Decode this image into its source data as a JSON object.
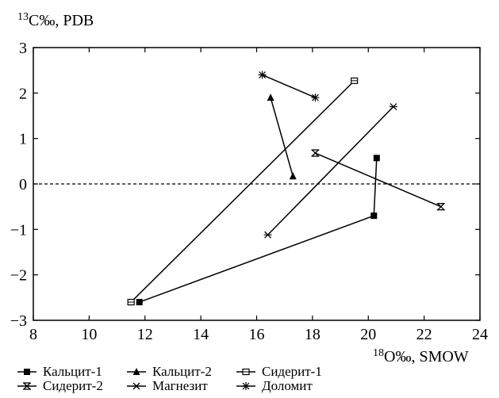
{
  "chart_data": {
    "type": "scatter",
    "x_label_sup": "18",
    "x_label_text": "O‰, SMOW",
    "y_label_sup": "13",
    "y_label_text": "C‰, PDB",
    "xlim": [
      8,
      24
    ],
    "ylim": [
      -3,
      3
    ],
    "x_ticks": [
      8,
      10,
      12,
      14,
      16,
      18,
      20,
      22,
      24
    ],
    "y_ticks": [
      -3,
      -2,
      -1,
      0,
      1,
      2,
      3
    ],
    "grid": false,
    "reference_line": {
      "y": 0,
      "style": "dashed"
    },
    "legend_position": "bottom-left",
    "series": [
      {
        "name": "Кальцит-1",
        "marker": "filled-square",
        "points": [
          [
            11.8,
            -2.6
          ],
          [
            20.2,
            -0.7
          ],
          [
            20.3,
            0.57
          ]
        ]
      },
      {
        "name": "Кальцит-2",
        "marker": "filled-triangle",
        "points": [
          [
            16.5,
            1.9
          ],
          [
            17.3,
            0.17
          ]
        ]
      },
      {
        "name": "Сидерит-1",
        "marker": "open-square",
        "points": [
          [
            11.5,
            -2.6
          ],
          [
            19.5,
            2.27
          ]
        ]
      },
      {
        "name": "Сидерит-2",
        "marker": "asterisk-box",
        "points": [
          [
            18.1,
            0.68
          ],
          [
            22.6,
            -0.5
          ]
        ]
      },
      {
        "name": "Магнезит",
        "marker": "x-cross",
        "points": [
          [
            16.4,
            -1.12
          ],
          [
            20.9,
            1.7
          ]
        ]
      },
      {
        "name": "Доломит",
        "marker": "star",
        "points": [
          [
            16.2,
            2.4
          ],
          [
            18.1,
            1.9
          ]
        ]
      }
    ],
    "tick_labels": {
      "x": [
        "8",
        "10",
        "12",
        "14",
        "16",
        "18",
        "20",
        "22",
        "24"
      ],
      "y": [
        "3",
        "2",
        "1",
        "0",
        "−1",
        "−2",
        "−3"
      ]
    }
  }
}
